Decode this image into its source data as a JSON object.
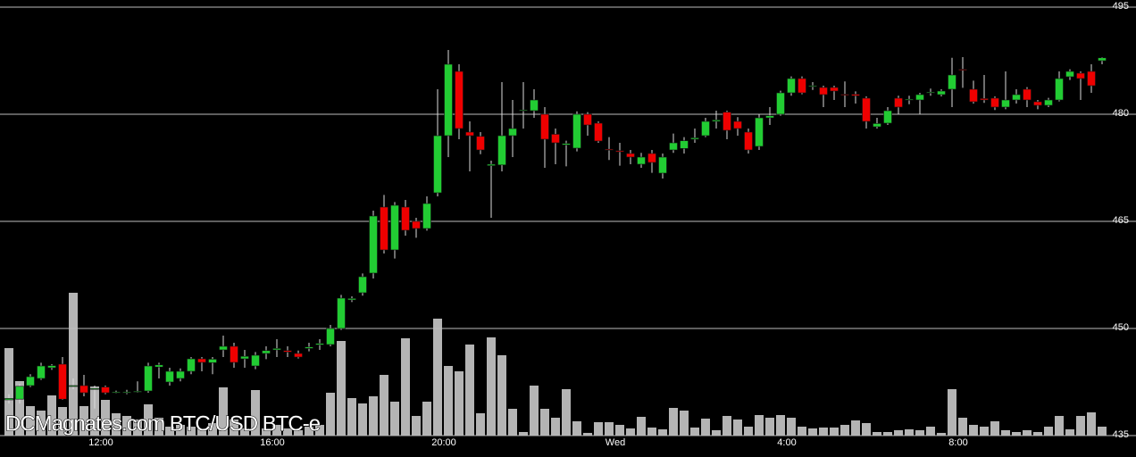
{
  "chart_data": {
    "type": "candlestick",
    "watermark": "DCMagnates.com BTC/USD BTC-e",
    "categories": [
      null,
      null,
      null,
      null,
      null,
      null,
      null,
      null,
      null,
      "12:00",
      null,
      null,
      null,
      null,
      null,
      null,
      null,
      null,
      null,
      null,
      null,
      null,
      null,
      null,
      null,
      "16:00",
      null,
      null,
      null,
      null,
      null,
      null,
      null,
      null,
      null,
      null,
      null,
      null,
      null,
      null,
      null,
      "20:00",
      null,
      null,
      null,
      null,
      null,
      null,
      null,
      null,
      null,
      null,
      null,
      null,
      null,
      null,
      null,
      "Wed",
      null,
      null,
      null,
      null,
      null,
      null,
      null,
      null,
      null,
      null,
      null,
      null,
      null,
      null,
      null,
      "4:00",
      null,
      null,
      null,
      null,
      null,
      null,
      null,
      null,
      null,
      null,
      null,
      null,
      null,
      null,
      null,
      "8:00",
      null,
      null,
      null,
      null,
      null,
      null,
      null,
      null,
      null,
      null,
      null,
      null,
      null
    ],
    "open": [
      440,
      440.1,
      442,
      443,
      444.5,
      445,
      442,
      442,
      441.5,
      441.8,
      441,
      441,
      441.1,
      441.25,
      444.6,
      442.5,
      443,
      444,
      445.75,
      445.2,
      447,
      447.5,
      445.75,
      444.75,
      446.5,
      447,
      446.9,
      446.5,
      447.2,
      447.7,
      447.75,
      450,
      454,
      455,
      457.75,
      467,
      461,
      467,
      465,
      464,
      469,
      477,
      486,
      477.5,
      476.9,
      472.8,
      472.9,
      477,
      480.5,
      480.5,
      480,
      477.2,
      475.7,
      475.25,
      480,
      478.75,
      475.1,
      474.9,
      474.5,
      473,
      474.5,
      471.75,
      475,
      475.2,
      476.5,
      477,
      479,
      480.3,
      479,
      477.5,
      475.5,
      479.5,
      480,
      483,
      485,
      484,
      483.75,
      483.75,
      482.8,
      482.8,
      482.25,
      478.25,
      478.75,
      482.25,
      482,
      482,
      483,
      482.75,
      483.5,
      486.3,
      483.5,
      482.2,
      482.25,
      481,
      482,
      483.5,
      481.75,
      481.25,
      482,
      485.25,
      485.75,
      486,
      487.5
    ],
    "high": [
      440.8,
      442.2,
      443.6,
      445.2,
      445,
      446,
      443,
      443.5,
      442,
      442,
      441.3,
      441.4,
      442.6,
      445.2,
      445.2,
      444.5,
      444.4,
      446,
      446,
      446,
      449,
      448,
      447,
      446.7,
      447.5,
      448.5,
      447.5,
      446.9,
      448,
      448.5,
      450.5,
      454.7,
      454.5,
      457.7,
      466.5,
      468.7,
      467.7,
      468,
      465.5,
      468.5,
      483.5,
      489,
      487,
      479,
      477.5,
      473.5,
      484.5,
      482,
      484.5,
      483.5,
      481,
      478,
      476.3,
      480.4,
      480.3,
      479,
      476.8,
      476,
      475,
      474.6,
      475,
      474.5,
      477.3,
      476.8,
      478,
      479.5,
      480.5,
      480.5,
      479.6,
      478,
      480,
      481,
      483.3,
      485.3,
      485.3,
      484.5,
      484,
      484,
      484.6,
      483.2,
      482.5,
      479.5,
      481,
      482.6,
      482.6,
      483,
      483.6,
      483.5,
      487.9,
      488,
      484.7,
      485.5,
      482.5,
      486,
      483.5,
      483.8,
      482,
      482.3,
      486,
      486.3,
      486,
      487,
      488
    ],
    "low": [
      439.5,
      439.5,
      441.8,
      442.8,
      444.2,
      440,
      441.5,
      440.5,
      438.8,
      440.8,
      440.9,
      440.8,
      441,
      441,
      443,
      442,
      442.6,
      443.6,
      444,
      443.6,
      446,
      444.5,
      444.5,
      444.3,
      445.7,
      446,
      446,
      445.8,
      446.8,
      447,
      447.5,
      449.8,
      453.7,
      454.6,
      457,
      460.5,
      459.8,
      463,
      462.7,
      463.7,
      468.5,
      474,
      476.5,
      472,
      474.4,
      465.5,
      472,
      474,
      478,
      479.5,
      472.5,
      473,
      472.7,
      474.8,
      477,
      476,
      473.6,
      472.8,
      473,
      472.5,
      471.8,
      471,
      474.6,
      474.5,
      476,
      476.8,
      478,
      476.5,
      477,
      474.5,
      475,
      478.5,
      479.8,
      482.6,
      482.8,
      483.4,
      481,
      482,
      481,
      481.5,
      478,
      478,
      478.5,
      480,
      481.4,
      480,
      482.6,
      482.5,
      481,
      483.7,
      481.5,
      481.6,
      480.6,
      480.7,
      481.5,
      481,
      480.7,
      481,
      481.8,
      484.8,
      482,
      483,
      487
    ],
    "close": [
      440.2,
      441.9,
      443.25,
      444.75,
      444.8,
      440.1,
      442,
      441,
      441.6,
      441,
      441.1,
      441.1,
      441.2,
      444.75,
      444.9,
      444,
      444,
      445.75,
      445.25,
      445.7,
      447.5,
      445.25,
      446.1,
      446.25,
      446.9,
      447.2,
      446.7,
      446,
      447.4,
      447.9,
      450,
      454.25,
      454.2,
      457.25,
      465.75,
      461,
      467.25,
      463.75,
      464,
      467.5,
      477,
      487,
      478,
      477,
      475,
      473,
      477,
      478,
      480.6,
      482,
      476.5,
      476,
      475.9,
      480,
      478.5,
      476.25,
      475,
      474.75,
      474,
      474,
      473.25,
      474,
      476,
      476.3,
      476.7,
      479,
      479.2,
      477.75,
      478,
      475,
      479.5,
      479.8,
      483,
      485,
      483,
      484,
      482.75,
      483.25,
      482.7,
      482.6,
      479,
      478.7,
      480.5,
      481,
      482.1,
      482.75,
      483.1,
      483.25,
      485.5,
      486.2,
      481.75,
      482,
      481,
      482,
      482.75,
      482,
      481.25,
      482,
      485,
      486,
      485,
      484,
      487.9
    ],
    "volume": [
      98,
      61,
      33,
      28,
      45,
      32,
      160,
      33,
      55,
      40,
      25,
      22,
      18,
      35,
      20,
      10,
      12,
      10,
      8,
      14,
      54,
      18,
      8,
      51,
      8,
      12,
      8,
      6,
      10,
      12,
      48,
      106,
      42,
      36,
      44,
      68,
      38,
      109,
      22,
      38,
      131,
      78,
      72,
      102,
      25,
      110,
      90,
      30,
      4,
      56,
      30,
      20,
      52,
      16,
      3,
      15,
      15,
      12,
      8,
      21,
      9,
      7,
      31,
      28,
      9,
      19,
      6,
      22,
      18,
      10,
      23,
      20,
      23,
      20,
      10,
      8,
      9,
      9,
      12,
      17,
      14,
      4,
      4,
      6,
      7,
      6,
      10,
      3,
      52,
      20,
      12,
      10,
      16,
      6,
      4,
      6,
      4,
      10,
      22,
      7,
      22,
      26,
      10
    ],
    "ylim": [
      435,
      495
    ],
    "yticks": [
      435,
      450,
      465,
      480,
      495
    ],
    "grid": true,
    "up_color": "#22cc33",
    "down_color": "#ee0000",
    "volume_color": "#b4b4b4"
  }
}
